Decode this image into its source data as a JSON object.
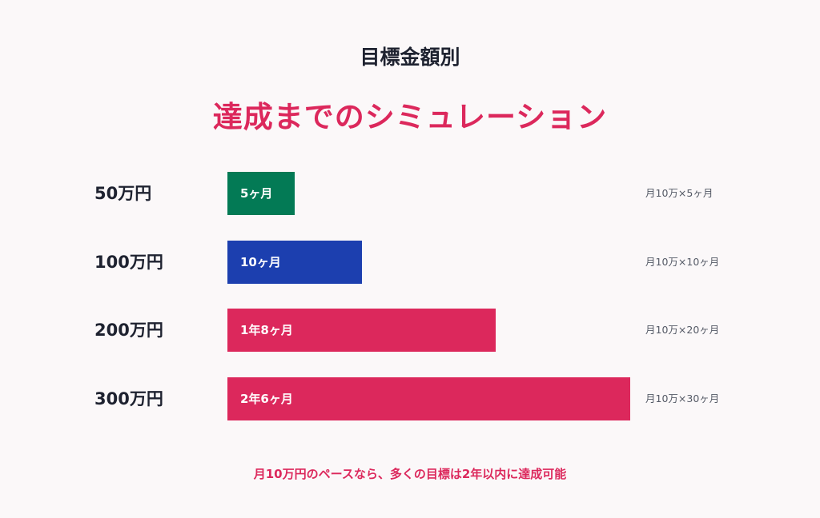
{
  "header": {
    "subtitle": "目標金額別",
    "title": "達成までのシミュレーション"
  },
  "chart_data": {
    "type": "bar",
    "orientation": "horizontal",
    "categories": [
      "50万円",
      "100万円",
      "200万円",
      "300万円"
    ],
    "series": [
      {
        "values": [
          5,
          10,
          20,
          30
        ],
        "value_labels": [
          "5ヶ月",
          "10ヶ月",
          "1年8ヶ月",
          "2年6ヶ月"
        ]
      }
    ],
    "annotations": [
      "月10万×5ヶ月",
      "月10万×10ヶ月",
      "月10万×20ヶ月",
      "月10万×30ヶ月"
    ],
    "bar_colors": [
      "#037a55",
      "#1c3faf",
      "#dc285c",
      "#dc285c"
    ],
    "xlim": [
      0,
      30
    ],
    "grid": false
  },
  "footer": {
    "note": "月10万円のペースなら、多くの目標は2年以内に達成可能"
  }
}
